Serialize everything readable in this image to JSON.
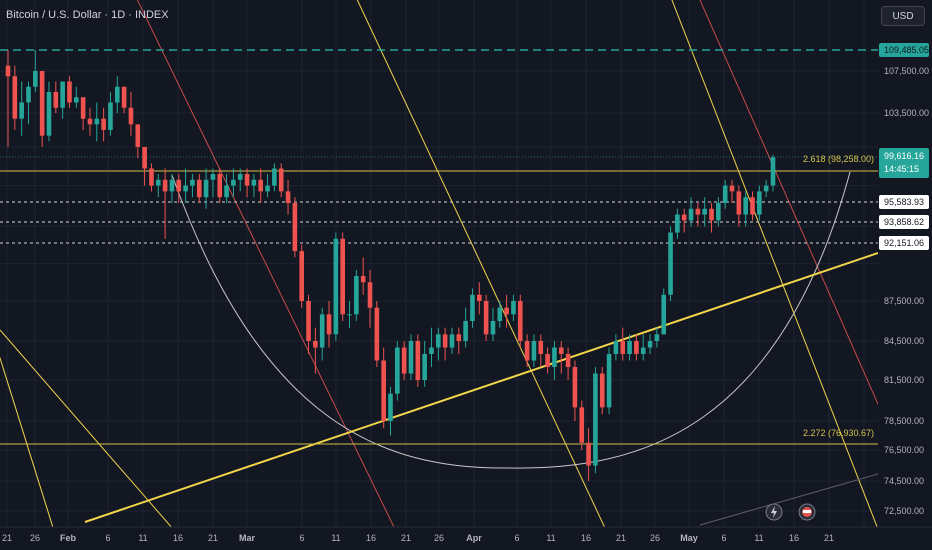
{
  "header": {
    "title": "Bitcoin / U.S. Dollar · 1D · INDEX",
    "currency_button": "USD"
  },
  "colors": {
    "background": "#131722",
    "up": "#26a69a",
    "down": "#ef5350",
    "yellow": "#f2d54b",
    "red_line": "#c74a4a",
    "grid": "#1f2330",
    "teal_dashed": "#26a69a"
  },
  "chart_data": {
    "type": "candlestick",
    "y_ticks": [
      "107,500.00",
      "103,500.00",
      "87,500.00",
      "84,500.00",
      "81,500.00",
      "78,500.00",
      "76,500.00",
      "74,500.00",
      "72,500.00"
    ],
    "x_ticks": [
      "21",
      "26",
      "Feb",
      "6",
      "11",
      "16",
      "21",
      "Mar",
      "6",
      "11",
      "16",
      "21",
      "26",
      "Apr",
      "6",
      "11",
      "16",
      "21",
      "26",
      "May",
      "6",
      "11",
      "16",
      "21"
    ],
    "price_labels": [
      {
        "name": "current-price",
        "value": "99,616.16",
        "sub": "14:45:15",
        "color": "#26a69a"
      },
      {
        "name": "level-109485",
        "value": "109,485.05",
        "color": "#26a69a"
      },
      {
        "name": "level-95583",
        "value": "95,583.93",
        "color": "#ffffff"
      },
      {
        "name": "level-93858",
        "value": "93,858.62",
        "color": "#ffffff"
      },
      {
        "name": "level-92151",
        "value": "92,151.06",
        "color": "#ffffff"
      }
    ],
    "fib_labels": [
      {
        "name": "fib-2618",
        "text": "2.618 (98,258.00)"
      },
      {
        "name": "fib-2272",
        "text": "2.272 (76,930.67)"
      }
    ],
    "candles": [
      [
        108000,
        107000,
        109500,
        100500
      ],
      [
        107000,
        103000,
        108000,
        102000
      ],
      [
        103000,
        104500,
        106500,
        101500
      ],
      [
        104500,
        106000,
        106500,
        102500
      ],
      [
        106000,
        107500,
        109500,
        105500
      ],
      [
        107500,
        101500,
        107500,
        100500
      ],
      [
        101500,
        105500,
        106500,
        101000
      ],
      [
        105500,
        104000,
        106500,
        103500
      ],
      [
        104000,
        106500,
        106500,
        103000
      ],
      [
        106500,
        104500,
        107000,
        104000
      ],
      [
        104500,
        105000,
        106000,
        104000
      ],
      [
        105000,
        103000,
        105000,
        102000
      ],
      [
        103000,
        102500,
        104000,
        101500
      ],
      [
        102500,
        103000,
        104500,
        101000
      ],
      [
        103000,
        102000,
        104000,
        101000
      ],
      [
        102000,
        104500,
        105500,
        101500
      ],
      [
        104500,
        106000,
        107000,
        103500
      ],
      [
        106000,
        104000,
        106000,
        103500
      ],
      [
        104000,
        102500,
        105500,
        101500
      ],
      [
        102500,
        100500,
        102500,
        99500
      ],
      [
        100500,
        98500,
        100500,
        97000
      ],
      [
        98500,
        97000,
        99000,
        96500
      ],
      [
        97000,
        97500,
        98000,
        96000
      ],
      [
        97500,
        96500,
        98500,
        92500
      ],
      [
        96500,
        97500,
        98000,
        95500
      ],
      [
        97500,
        96500,
        98000,
        95500
      ],
      [
        96500,
        97000,
        98500,
        95500
      ],
      [
        97000,
        97500,
        98000,
        96000
      ],
      [
        97500,
        96000,
        98000,
        95500
      ],
      [
        96000,
        97500,
        98500,
        95000
      ],
      [
        97500,
        98000,
        98500,
        96000
      ],
      [
        98000,
        96000,
        98500,
        95500
      ],
      [
        96000,
        97000,
        98000,
        95500
      ],
      [
        97000,
        97500,
        98500,
        96000
      ],
      [
        97500,
        98000,
        98500,
        96500
      ],
      [
        98000,
        97000,
        98500,
        96000
      ],
      [
        97000,
        97500,
        98000,
        96000
      ],
      [
        97500,
        96500,
        98500,
        95500
      ],
      [
        96500,
        97000,
        98000,
        96000
      ],
      [
        97000,
        98500,
        99000,
        96500
      ],
      [
        98500,
        96500,
        99000,
        96000
      ],
      [
        96500,
        95500,
        97500,
        94500
      ],
      [
        95500,
        91500,
        96000,
        91000
      ],
      [
        91500,
        87500,
        92000,
        87000
      ],
      [
        87500,
        84500,
        88000,
        83500
      ],
      [
        84500,
        84000,
        85500,
        82000
      ],
      [
        84000,
        86500,
        87000,
        83000
      ],
      [
        86500,
        85000,
        87500,
        84000
      ],
      [
        85000,
        92500,
        93000,
        84500
      ],
      [
        92500,
        86500,
        93000,
        86000
      ],
      [
        86500,
        86500,
        87500,
        85500
      ],
      [
        86500,
        89500,
        90000,
        86000
      ],
      [
        89500,
        89000,
        91000,
        88000
      ],
      [
        89000,
        87000,
        90000,
        85500
      ],
      [
        87000,
        83000,
        87500,
        82500
      ],
      [
        83000,
        78500,
        84000,
        78000
      ],
      [
        78500,
        80500,
        81000,
        77500
      ],
      [
        80500,
        84000,
        84500,
        80000
      ],
      [
        84000,
        82000,
        84500,
        81500
      ],
      [
        82000,
        84500,
        85000,
        81500
      ],
      [
        84500,
        81500,
        85000,
        81000
      ],
      [
        81500,
        83500,
        84500,
        81000
      ],
      [
        83500,
        84000,
        85500,
        82500
      ],
      [
        84000,
        85000,
        85500,
        83000
      ],
      [
        85000,
        84000,
        85500,
        83000
      ],
      [
        84000,
        85000,
        85500,
        83500
      ],
      [
        85000,
        84500,
        85500,
        83500
      ],
      [
        84500,
        86000,
        87000,
        84000
      ],
      [
        86000,
        88000,
        88500,
        85500
      ],
      [
        88000,
        87500,
        89000,
        86500
      ],
      [
        87500,
        85000,
        88000,
        84500
      ],
      [
        85000,
        86000,
        87000,
        84500
      ],
      [
        86000,
        87000,
        87500,
        85500
      ],
      [
        87000,
        86500,
        88000,
        85500
      ],
      [
        86500,
        87500,
        88000,
        86000
      ],
      [
        87500,
        84500,
        88000,
        84000
      ],
      [
        84500,
        83000,
        85000,
        82500
      ],
      [
        83000,
        84500,
        85000,
        82500
      ],
      [
        84500,
        83500,
        85000,
        82500
      ],
      [
        83500,
        82500,
        84000,
        82000
      ],
      [
        82500,
        84000,
        84500,
        81500
      ],
      [
        84000,
        83500,
        84500,
        82000
      ],
      [
        83500,
        82500,
        84000,
        81500
      ],
      [
        82500,
        79500,
        83000,
        78500
      ],
      [
        79500,
        77000,
        80000,
        76500
      ],
      [
        77000,
        75500,
        78000,
        74500
      ],
      [
        75500,
        82000,
        82500,
        75000
      ],
      [
        82000,
        79500,
        82500,
        79000
      ],
      [
        79500,
        83500,
        84000,
        79000
      ],
      [
        83500,
        84500,
        85000,
        83000
      ],
      [
        84500,
        83500,
        85500,
        83000
      ],
      [
        83500,
        84500,
        85000,
        83000
      ],
      [
        84500,
        83500,
        85000,
        83000
      ],
      [
        83500,
        84000,
        85000,
        83000
      ],
      [
        84000,
        84500,
        85000,
        83500
      ],
      [
        84500,
        85000,
        85500,
        84000
      ],
      [
        85000,
        88000,
        88500,
        85000
      ],
      [
        88000,
        93000,
        93500,
        87500
      ],
      [
        93000,
        94500,
        95000,
        92500
      ],
      [
        94500,
        94000,
        95000,
        93000
      ],
      [
        94000,
        95000,
        96000,
        93500
      ],
      [
        95000,
        94500,
        95500,
        93500
      ],
      [
        94500,
        95000,
        96000,
        93500
      ],
      [
        95000,
        94000,
        95500,
        93000
      ],
      [
        94000,
        95500,
        96000,
        93500
      ],
      [
        95500,
        97000,
        97500,
        95000
      ],
      [
        97000,
        96500,
        97500,
        95500
      ],
      [
        96500,
        94500,
        97000,
        93500
      ],
      [
        94500,
        96000,
        96500,
        93500
      ],
      [
        96000,
        94500,
        96500,
        94000
      ],
      [
        94500,
        96500,
        97000,
        94000
      ],
      [
        96500,
        97000,
        97500,
        96000
      ],
      [
        97000,
        99600,
        99800,
        96500
      ]
    ]
  }
}
